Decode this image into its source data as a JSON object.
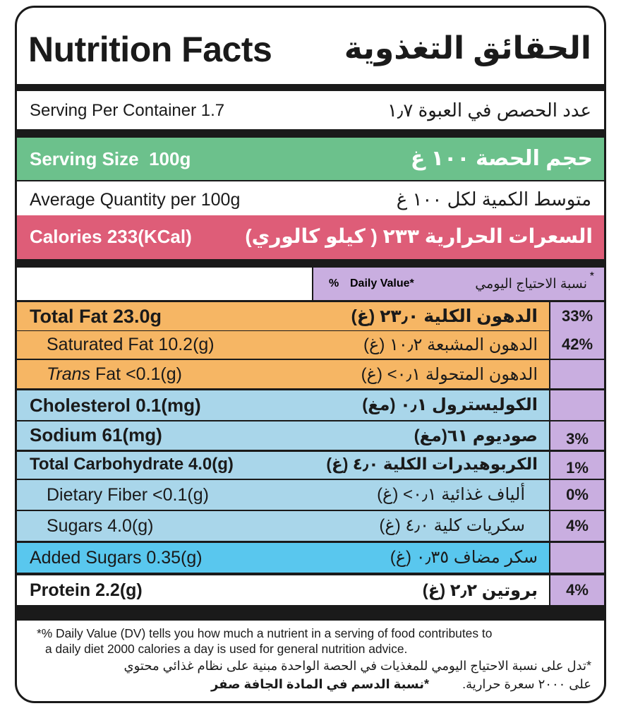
{
  "header": {
    "title_en": "Nutrition Facts",
    "title_ar": "الحقائق التغذوية"
  },
  "serving_per_container": {
    "en": "Serving Per Container 1.7",
    "ar": "عدد الحصص في العبوة ١٫٧"
  },
  "serving_size": {
    "en": "Serving Size  100g",
    "ar": "حجم الحصة ١٠٠ غ"
  },
  "average_quantity": {
    "en": "Average Quantity per 100g",
    "ar": "متوسط الكمية لكل ١٠٠ غ"
  },
  "calories": {
    "en": "Calories 233(KCal)",
    "ar": "السعرات الحرارية ٢٣٣ ( كيلو كالوري)"
  },
  "daily_value_header": {
    "star": "*",
    "ar": "نسبة الاحتياج اليومي",
    "en": "Daily Value*",
    "pct": "%"
  },
  "nutrients": [
    {
      "en": "Total Fat 23.0g",
      "ar": "الدهون الكلية ٢٣٫٠ (غ)",
      "dv": "33%"
    },
    {
      "en": "Saturated Fat 10.2(g)",
      "ar": "الدهون المشبعة ١٠٫٢ (غ)",
      "dv": "42%"
    },
    {
      "en_italic": "Trans",
      "en": " Fat <0.1(g)",
      "ar": "الدهون المتحولة ٠٫١> (غ)",
      "dv": ""
    },
    {
      "en": "Cholesterol 0.1(mg)",
      "ar": "الكوليسترول ٠٫١ (مغ)",
      "dv": ""
    },
    {
      "en": "Sodium 61(mg)",
      "ar": "صوديوم ٦١(مغ)",
      "dv": "3%"
    },
    {
      "en": "Total Carbohydrate 4.0(g)",
      "ar": "الكربوهيدرات الكلية ٤٫٠ (غ)",
      "dv": "1%"
    },
    {
      "en": "Dietary Fiber <0.1(g)",
      "ar": "ألياف غذائية ٠٫١> (غ)",
      "dv": "0%"
    },
    {
      "en": "Sugars 4.0(g)",
      "ar": "سكريات كلية ٤٫٠ (غ)",
      "dv": "4%"
    },
    {
      "en": "Added Sugars 0.35(g)",
      "ar": "سكر مضاف ٠٫٣٥ (غ)",
      "dv": ""
    },
    {
      "en": "Protein 2.2(g)",
      "ar": "بروتين ٢٫٢ (غ)",
      "dv": "4%"
    }
  ],
  "footnotes": {
    "en_line1": "*% Daily Value (DV) tells you how much a nutrient in a serving of food contributes to",
    "en_line2": "a daily diet 2000 calories a day is used for general nutrition advice.",
    "ar_line1": "*تدل على نسبة الاحتياج اليومي للمغذيات في الحصة الواحدة مبنية على نظام غذائي محتوي",
    "ar_line2": "على ٢٠٠٠ سعرة حرارية.",
    "ar_line3": "*نسبة الدسم في المادة الجافة صفر"
  },
  "colors": {
    "green": "#6cc18c",
    "pink": "#de5d78",
    "orange": "#f6b664",
    "light_blue": "#a9d6ea",
    "cyan": "#59c7ee",
    "purple": "#c9aee0",
    "dark": "#1a1a1a"
  }
}
